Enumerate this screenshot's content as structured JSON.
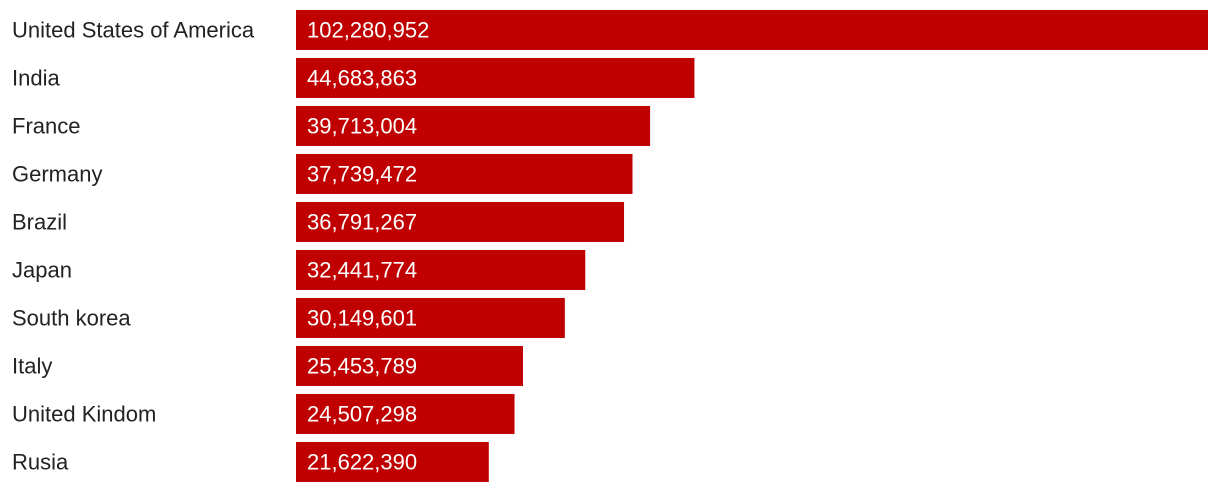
{
  "chart_data": {
    "type": "bar",
    "orientation": "horizontal",
    "categories": [
      "United States of America",
      "India",
      "France",
      "Germany",
      "Brazil",
      "Japan",
      "South korea",
      "Italy",
      "United Kindom",
      "Rusia"
    ],
    "values": [
      102280952,
      44683863,
      39713004,
      37739472,
      36791267,
      32441774,
      30149601,
      25453789,
      24507298,
      21622390
    ],
    "value_labels": [
      "102,280,952",
      "44,683,863",
      "39,713,004",
      "37,739,472",
      "36,791,267",
      "32,441,774",
      "30,149,601",
      "25,453,789",
      "24,507,298",
      "21,622,390"
    ],
    "xlim": [
      0,
      102280952
    ],
    "grid": false,
    "legend": "none",
    "bar_color": "#c00000",
    "label_color": "#222222",
    "value_label_color": "#ffffff"
  }
}
